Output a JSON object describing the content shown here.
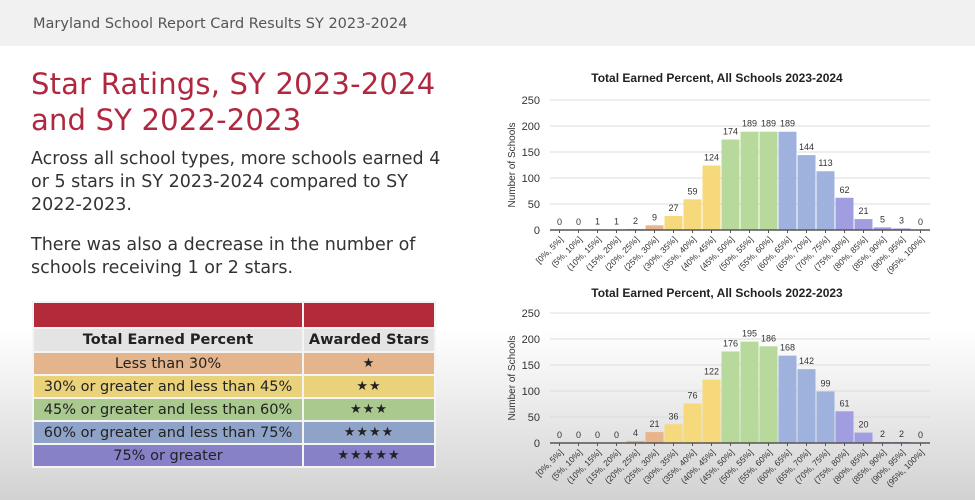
{
  "header": {
    "title": "Maryland School Report Card Results SY 2023-2024"
  },
  "slide": {
    "title_line1": "Star Ratings, SY 2023-2024",
    "title_line2": "and SY 2022-2023",
    "paragraph1": "Across all school types, more schools earned 4 or 5 stars in SY 2023-2024 compared to SY 2022-2023.",
    "paragraph2": "There was also a decrease in the number of schools receiving 1 or 2 stars."
  },
  "table": {
    "headers": [
      "Total Earned Percent",
      "Awarded Stars"
    ],
    "rows": [
      {
        "range": "Less than 30%",
        "stars": "★",
        "color": "#e4b48c"
      },
      {
        "range": "30% or greater and less than 45%",
        "stars": "★★",
        "color": "#ead27a"
      },
      {
        "range": "45% or greater and less than 60%",
        "stars": "★★★",
        "color": "#a9c98f"
      },
      {
        "range": "60% or greater and less than 75%",
        "stars": "★★★★",
        "color": "#8fa3c8"
      },
      {
        "range": "75% or greater",
        "stars": "★★★★★",
        "color": "#8782c8"
      }
    ]
  },
  "chart_data": [
    {
      "type": "bar",
      "title": "Total Earned Percent, All Schools 2023-2024",
      "ylabel": "Number of Schools",
      "xlabel": "",
      "ylim": [
        0,
        250
      ],
      "yticks": [
        0,
        50,
        100,
        150,
        200,
        250
      ],
      "grid": true,
      "categories": [
        "[0%, 5%]",
        "(5%, 10%]",
        "(10%, 15%]",
        "(15%, 20%]",
        "(20%, 25%]",
        "(25%, 30%]",
        "(30%, 35%]",
        "(35%, 40%]",
        "(40%, 45%]",
        "(45%, 50%]",
        "(50%, 55%]",
        "(55%, 60%]",
        "(60%, 65%]",
        "(65%, 70%]",
        "(70%, 75%]",
        "(75%, 80%]",
        "(80%, 85%]",
        "(85%, 90%]",
        "(90%, 95%]",
        "(95%, 100%]"
      ],
      "values": [
        0,
        0,
        1,
        1,
        2,
        9,
        27,
        59,
        124,
        174,
        189,
        189,
        189,
        144,
        113,
        62,
        21,
        5,
        3,
        0
      ]
    },
    {
      "type": "bar",
      "title": "Total Earned Percent, All Schools 2022-2023",
      "ylabel": "Number of Schools",
      "xlabel": "",
      "ylim": [
        0,
        250
      ],
      "yticks": [
        0,
        50,
        100,
        150,
        200,
        250
      ],
      "grid": true,
      "categories": [
        "[0%, 5%]",
        "(5%, 10%]",
        "(10%, 15%]",
        "(15%, 20%]",
        "(20%, 25%]",
        "(25%, 30%]",
        "(30%, 35%]",
        "(35%, 40%]",
        "(40%, 45%]",
        "(45%, 50%]",
        "(50%, 55%]",
        "(55%, 60%]",
        "(60%, 65%]",
        "(65%, 70%]",
        "(70%, 75%]",
        "(75%, 80%]",
        "(80%, 85%]",
        "(85%, 90%]",
        "(90%, 95%]",
        "(95%, 100%]"
      ],
      "values": [
        0,
        0,
        0,
        0,
        4,
        21,
        36,
        76,
        122,
        176,
        195,
        186,
        168,
        142,
        99,
        61,
        20,
        2,
        2,
        0
      ]
    }
  ],
  "bar_colors": {
    "1_star": "#e8b48c",
    "2_star": "#f6d97a",
    "3_star": "#b8d99c",
    "4_star": "#9fb2dd",
    "5_star": "#a09ee0"
  }
}
